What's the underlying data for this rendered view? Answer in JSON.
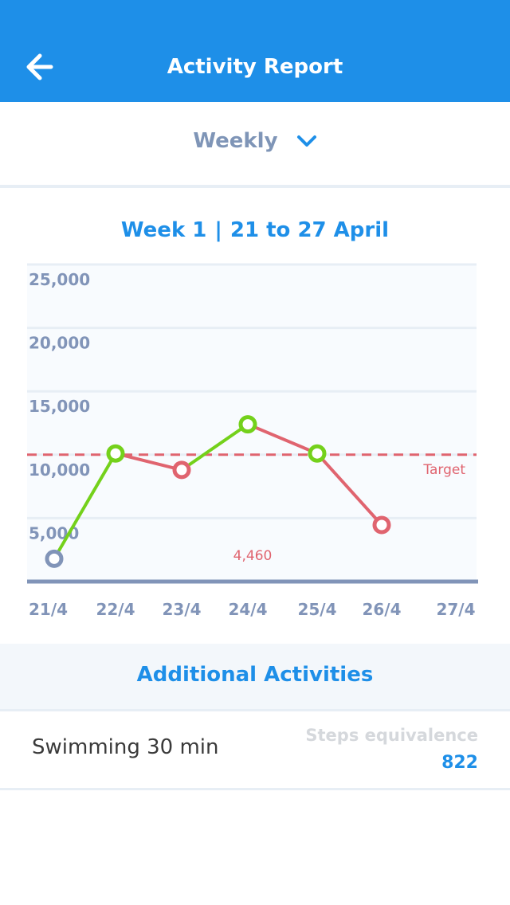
{
  "header": {
    "title": "Activity Report",
    "back_icon": "back-arrow-icon"
  },
  "period_selector": {
    "label": "Weekly",
    "icon": "chevron-down-icon"
  },
  "chart_heading": {
    "week": "Week 1",
    "range": "21 to 27 April"
  },
  "chart_data": {
    "type": "line",
    "x": [
      "21/4",
      "22/4",
      "23/4",
      "24/4",
      "25/4",
      "26/4",
      "27/4"
    ],
    "series": [
      {
        "values": [
          1800,
          10100,
          8800,
          12400,
          10100,
          4460,
          null
        ]
      }
    ],
    "point_colors": [
      "#8194b8",
      "#74d11b",
      "#e0646f",
      "#74d11b",
      "#74d11b",
      "#e0646f",
      null
    ],
    "segment_colors": [
      "#74d11b",
      "#e0646f",
      "#74d11b",
      "#e0646f",
      "#e0646f",
      null
    ],
    "target": 10000,
    "target_label": "Target",
    "y_ticks": [
      "25,000",
      "20,000",
      "15,000",
      "10,000",
      "5,000"
    ],
    "ylim": [
      0,
      25000
    ],
    "annotation": "4,460",
    "grid": true,
    "colors": {
      "target": "#e0646f",
      "grid": "#e7eef5",
      "axis": "#8194b8"
    }
  },
  "additional": {
    "title": "Additional Activities",
    "items": [
      {
        "activity": "Swimming 30 min",
        "equiv_label": "Steps equivalence",
        "equiv_value": "822"
      }
    ]
  }
}
